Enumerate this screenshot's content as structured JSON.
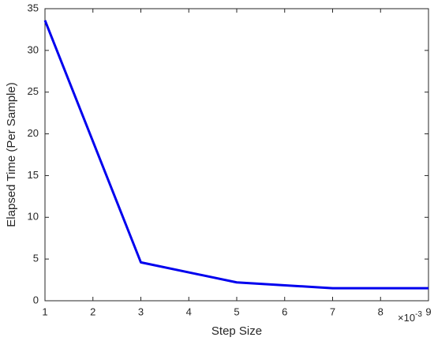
{
  "chart_data": {
    "type": "line",
    "x_label": "Step Size",
    "y_label": "Elapsed Time (Per Sample)",
    "x_multiplier": {
      "base": "×10",
      "exponent": "-3"
    },
    "x": [
      1,
      3,
      5,
      7,
      9
    ],
    "series": [
      {
        "color": "#0000ee",
        "values": [
          33.6,
          4.6,
          2.2,
          1.5,
          1.5
        ]
      }
    ],
    "xlim": [
      1,
      9
    ],
    "xticks": [
      1,
      2,
      3,
      4,
      5,
      6,
      7,
      8,
      9
    ],
    "ylim": [
      0,
      35
    ],
    "yticks": [
      0,
      5,
      10,
      15,
      20,
      25,
      30,
      35
    ],
    "grid": false
  }
}
